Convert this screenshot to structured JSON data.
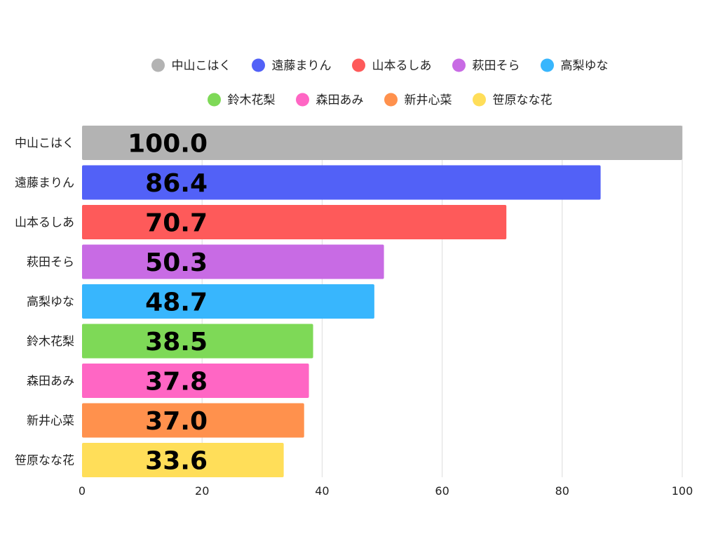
{
  "chart_data": {
    "type": "bar",
    "orientation": "horizontal",
    "title": "",
    "xlabel": "",
    "ylabel": "",
    "xlim": [
      0,
      100
    ],
    "xticks": [
      0,
      20,
      40,
      60,
      80,
      100
    ],
    "grid": true,
    "legend_position": "top-center",
    "categories": [
      "中山こはく",
      "遠藤まりん",
      "山本るしあ",
      "萩田そら",
      "高梨ゆな",
      "鈴木花梨",
      "森田あみ",
      "新井心菜",
      "笹原なな花"
    ],
    "values": [
      100.0,
      86.4,
      70.7,
      50.3,
      48.7,
      38.5,
      37.8,
      37.0,
      33.6
    ],
    "value_labels": [
      "100.0",
      "86.4",
      "70.7",
      "50.3",
      "48.7",
      "38.5",
      "37.8",
      "37.0",
      "33.6"
    ],
    "colors": [
      "#b3b3b3",
      "#5261f7",
      "#fe5a5a",
      "#c86be4",
      "#38b6fd",
      "#7ed957",
      "#ff66c4",
      "#ff914d",
      "#ffde59"
    ]
  }
}
